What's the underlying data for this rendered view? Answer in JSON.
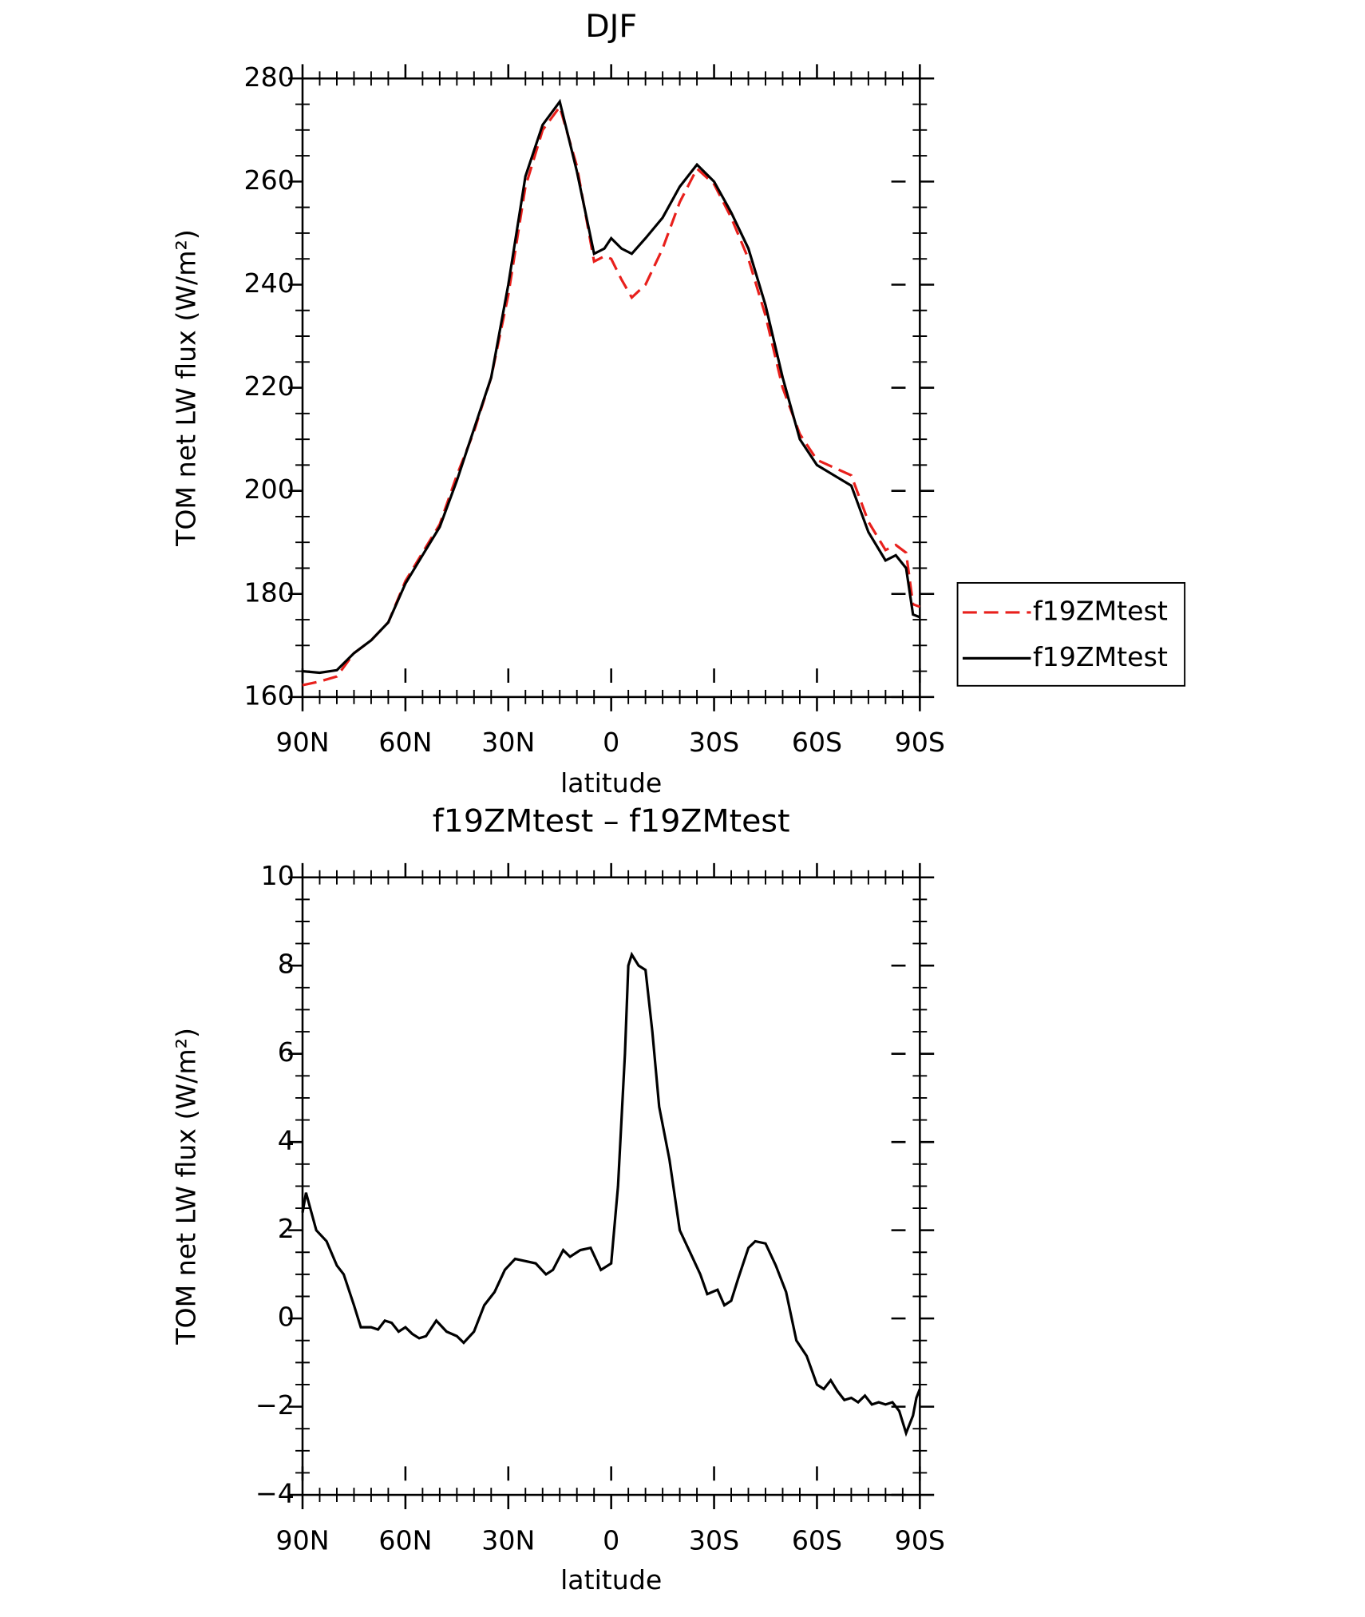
{
  "chart_data": [
    {
      "type": "line",
      "title": "DJF",
      "xlabel": "latitude",
      "ylabel": "TOM net LW flux (W/m²)",
      "x": [
        90,
        85,
        80,
        75,
        70,
        65,
        60,
        55,
        50,
        45,
        40,
        35,
        30,
        25,
        20,
        15,
        10,
        5,
        2,
        0,
        -3,
        -6,
        -10,
        -15,
        -20,
        -25,
        -30,
        -35,
        -40,
        -45,
        -50,
        -55,
        -60,
        -65,
        -70,
        -75,
        -80,
        -83,
        -86,
        -88,
        -90
      ],
      "series": [
        {
          "name": "f19ZMtest",
          "color": "#e8201c",
          "linestyle": "dashed",
          "values": [
            162.3,
            163,
            164,
            168.5,
            171,
            174.5,
            182.5,
            188,
            193.5,
            203,
            211.5,
            222,
            238,
            259,
            270,
            274.5,
            263,
            244.5,
            245.5,
            245,
            241,
            237.5,
            240,
            247,
            256,
            262.5,
            259.5,
            253,
            245,
            234,
            220,
            211,
            206,
            204.5,
            203,
            194,
            188.5,
            189.5,
            188,
            178,
            177.5
          ]
        },
        {
          "name": "f19ZMtest",
          "color": "#000000",
          "linestyle": "solid",
          "values": [
            165,
            164.7,
            165.2,
            168.5,
            171,
            174.5,
            182,
            187.5,
            193,
            202,
            212,
            222,
            240,
            261,
            271,
            275.5,
            262,
            246,
            247,
            249,
            247,
            246,
            249,
            253,
            259,
            263.3,
            260,
            254,
            247,
            236,
            222,
            210,
            205,
            203,
            201,
            192,
            186.5,
            187.5,
            185,
            176,
            175.5
          ]
        }
      ],
      "xlim": [
        90,
        -90
      ],
      "xticks": [
        {
          "value": 90,
          "label": "90N"
        },
        {
          "value": 60,
          "label": "60N"
        },
        {
          "value": 30,
          "label": "30N"
        },
        0,
        {
          "value": -30,
          "label": "30S"
        },
        {
          "value": -60,
          "label": "60S"
        },
        {
          "value": -90,
          "label": "90S"
        }
      ],
      "ylim": [
        160,
        280
      ],
      "yticks": [
        160,
        180,
        200,
        220,
        240,
        260,
        280
      ],
      "legend": "right"
    },
    {
      "type": "line",
      "title": "f19ZMtest – f19ZMtest",
      "xlabel": "latitude",
      "ylabel": "TOM net LW flux (W/m²)",
      "x": [
        90,
        89,
        86,
        83,
        80,
        78,
        75,
        73,
        70,
        68,
        66,
        64,
        62,
        60,
        58,
        56,
        54,
        51,
        48,
        45,
        43,
        40,
        37,
        34,
        31,
        28,
        25,
        22,
        19,
        17,
        14,
        12,
        9,
        6,
        3,
        0,
        -2,
        -4,
        -5,
        -6,
        -8,
        -10,
        -12,
        -14,
        -17,
        -20,
        -23,
        -26,
        -28,
        -31,
        -33,
        -35,
        -37,
        -40,
        -42,
        -45,
        -48,
        -51,
        -54,
        -57,
        -60,
        -62,
        -64,
        -66,
        -68,
        -70,
        -72,
        -74,
        -76,
        -78,
        -80,
        -82,
        -84,
        -86,
        -88,
        -89,
        -90
      ],
      "series": [
        {
          "name": "f19ZMtest – f19ZMtest",
          "color": "#000000",
          "linestyle": "solid",
          "values": [
            2.4,
            2.85,
            2.0,
            1.75,
            1.2,
            1.0,
            0.3,
            -0.2,
            -0.2,
            -0.25,
            -0.05,
            -0.1,
            -0.3,
            -0.2,
            -0.35,
            -0.45,
            -0.4,
            -0.05,
            -0.3,
            -0.4,
            -0.55,
            -0.3,
            0.3,
            0.6,
            1.1,
            1.35,
            1.3,
            1.25,
            1.0,
            1.1,
            1.55,
            1.4,
            1.55,
            1.6,
            1.1,
            1.25,
            3.0,
            6.0,
            8.0,
            8.25,
            8.0,
            7.9,
            6.5,
            4.8,
            3.6,
            2.0,
            1.5,
            1.0,
            0.55,
            0.65,
            0.3,
            0.4,
            0.9,
            1.6,
            1.75,
            1.7,
            1.2,
            0.6,
            -0.5,
            -0.85,
            -1.5,
            -1.6,
            -1.4,
            -1.65,
            -1.85,
            -1.8,
            -1.9,
            -1.75,
            -1.95,
            -1.9,
            -1.95,
            -1.9,
            -2.1,
            -2.6,
            -2.2,
            -1.8,
            -1.6
          ]
        }
      ],
      "xlim": [
        90,
        -90
      ],
      "xticks": [
        {
          "value": 90,
          "label": "90N"
        },
        {
          "value": 60,
          "label": "60N"
        },
        {
          "value": 30,
          "label": "30N"
        },
        0,
        {
          "value": -30,
          "label": "30S"
        },
        {
          "value": -60,
          "label": "60S"
        },
        {
          "value": -90,
          "label": "90S"
        }
      ],
      "ylim": [
        -4,
        10
      ],
      "yticks": [
        {
          "value": -4,
          "label": "−4"
        },
        {
          "value": -2,
          "label": "−2"
        },
        0,
        2,
        4,
        6,
        8,
        10
      ]
    }
  ]
}
